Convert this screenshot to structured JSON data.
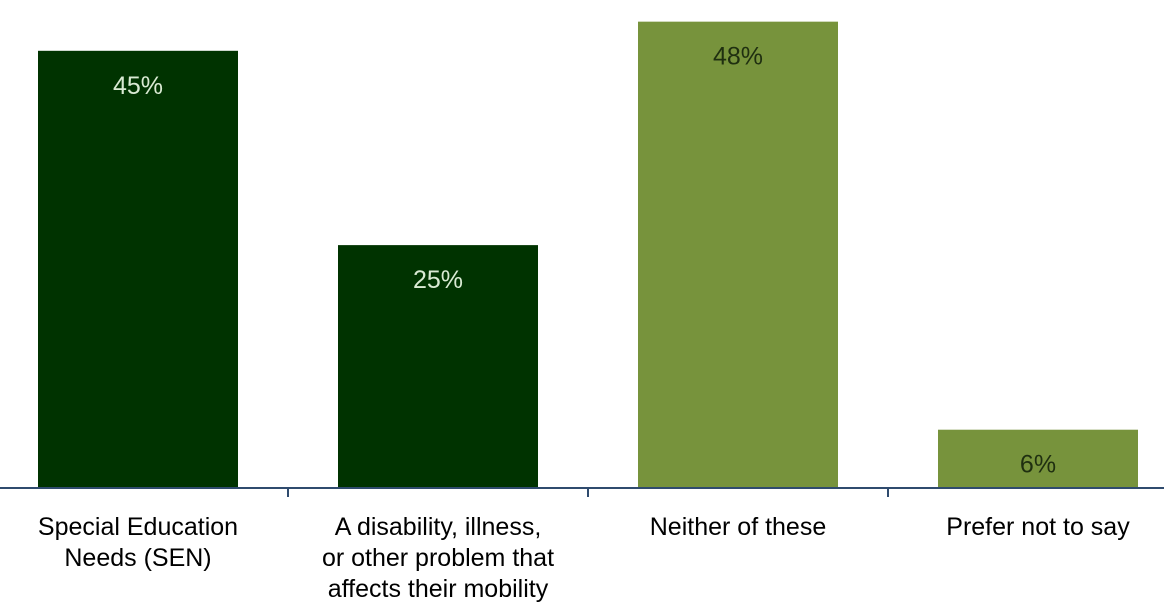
{
  "chart_data": {
    "type": "bar",
    "categories": [
      [
        "Special Education",
        "Needs (SEN)"
      ],
      [
        "A disability, illness,",
        "or other problem that",
        "affects their mobility"
      ],
      [
        "Neither of these"
      ],
      [
        "Prefer not to say"
      ]
    ],
    "values": [
      45,
      25,
      48,
      6
    ],
    "data_labels": [
      "45%",
      "25%",
      "48%",
      "6%"
    ],
    "unit": "%",
    "ylim": [
      0,
      49.2
    ],
    "grid": false,
    "legend": "none",
    "colors": {
      "dark_green": "#003300",
      "light_green": "#77933c",
      "axis": "#2f4b6e",
      "label_on_dark": "#d9ead3",
      "label_on_light": "#1f2f10"
    },
    "bar_colors": [
      "dark_green",
      "dark_green",
      "light_green",
      "light_green"
    ]
  }
}
